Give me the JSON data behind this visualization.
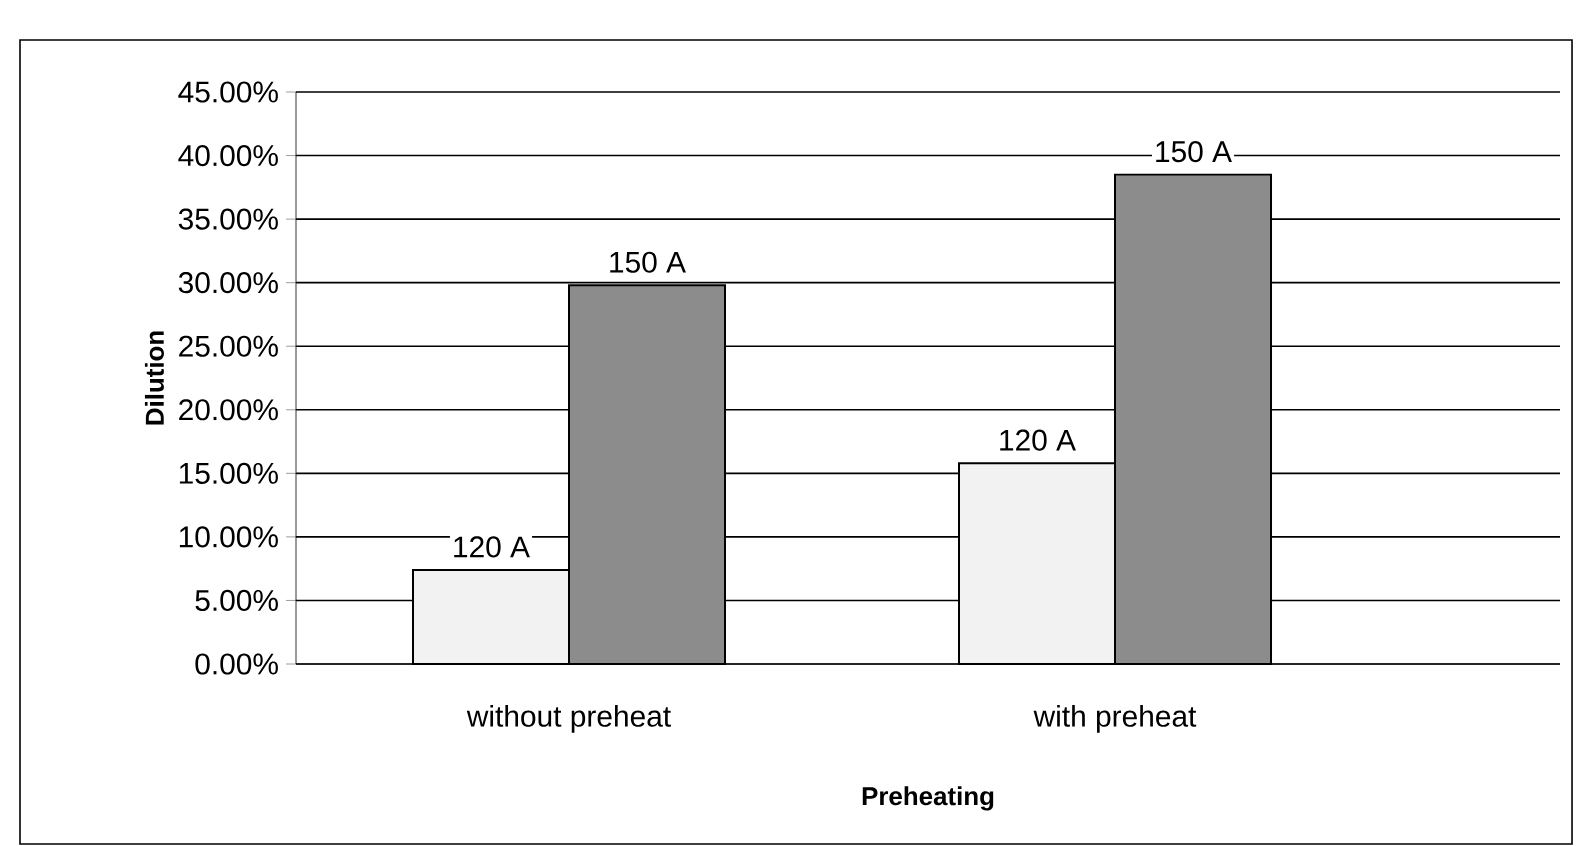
{
  "chart_data": {
    "type": "bar",
    "xlabel": "Preheating",
    "ylabel": "Dilution",
    "categories": [
      "without preheat",
      "with preheat"
    ],
    "series": [
      {
        "name": "120 A",
        "color": "#f2f2f2",
        "values": [
          7.4,
          15.8
        ]
      },
      {
        "name": "150 A",
        "color": "#8c8c8c",
        "values": [
          29.8,
          38.5
        ]
      }
    ],
    "ylim": [
      0,
      45
    ],
    "yticks": [
      {
        "value": 0,
        "label": "0.00%"
      },
      {
        "value": 5,
        "label": "5.00%"
      },
      {
        "value": 10,
        "label": "10.00%"
      },
      {
        "value": 15,
        "label": "15.00%"
      },
      {
        "value": 20,
        "label": "20.00%"
      },
      {
        "value": 25,
        "label": "25.00%"
      },
      {
        "value": 30,
        "label": "30.00%"
      },
      {
        "value": 35,
        "label": "35.00%"
      },
      {
        "value": 40,
        "label": "40.00%"
      },
      {
        "value": 45,
        "label": "45.00%"
      }
    ],
    "grid": "y"
  }
}
